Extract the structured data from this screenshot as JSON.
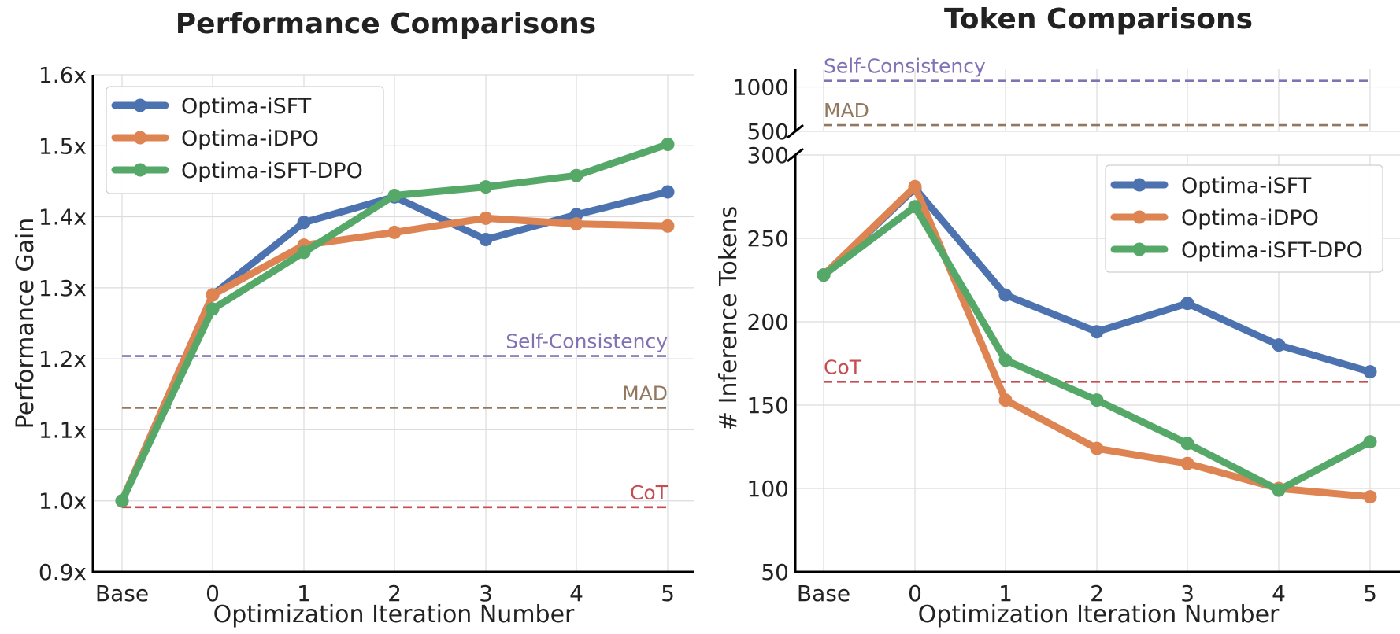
{
  "chart_data": [
    {
      "type": "line",
      "title": "Performance Comparisons",
      "xlabel": "Optimization Iteration Number",
      "ylabel": "Performance Gain",
      "categories": [
        "Base",
        "0",
        "1",
        "2",
        "3",
        "4",
        "5"
      ],
      "ylim": [
        0.9,
        1.6
      ],
      "yticks": [
        0.9,
        1.0,
        1.1,
        1.2,
        1.3,
        1.4,
        1.5,
        1.6
      ],
      "ytick_labels": [
        "0.9x",
        "1.0x",
        "1.1x",
        "1.2x",
        "1.3x",
        "1.4x",
        "1.5x",
        "1.6x"
      ],
      "grid": true,
      "legend_position": "top-left",
      "series": [
        {
          "name": "Optima-iSFT",
          "color": "#4c72b0",
          "values": [
            1.0,
            1.29,
            1.392,
            1.428,
            1.368,
            1.403,
            1.435
          ]
        },
        {
          "name": "Optima-iDPO",
          "color": "#dd8452",
          "values": [
            1.0,
            1.29,
            1.36,
            1.378,
            1.398,
            1.39,
            1.387
          ]
        },
        {
          "name": "Optima-iSFT-DPO",
          "color": "#55a868",
          "values": [
            1.0,
            1.27,
            1.35,
            1.43,
            1.442,
            1.458,
            1.502
          ]
        }
      ],
      "baselines": [
        {
          "name": "Self-Consistency",
          "color": "#8172b3",
          "value": 1.204
        },
        {
          "name": "MAD",
          "color": "#937860",
          "value": 1.131
        },
        {
          "name": "CoT",
          "color": "#c44e52",
          "value": 0.991
        }
      ]
    },
    {
      "type": "line",
      "title": "Token Comparisons",
      "xlabel": "Optimization Iteration Number",
      "ylabel": "# Inference Tokens",
      "categories": [
        "Base",
        "0",
        "1",
        "2",
        "3",
        "4",
        "5"
      ],
      "ylim_lower": [
        50,
        300
      ],
      "yticks_lower": [
        50,
        100,
        150,
        200,
        250,
        300
      ],
      "ytick_labels_lower": [
        "50",
        "100",
        "150",
        "200",
        "250",
        "300"
      ],
      "ylim_upper": [
        500,
        1200
      ],
      "yticks_upper": [
        500,
        1000
      ],
      "ytick_labels_upper": [
        "500",
        "1000"
      ],
      "broken_axis": true,
      "grid": true,
      "legend_position": "top-right",
      "series": [
        {
          "name": "Optima-iSFT",
          "color": "#4c72b0",
          "values": [
            228,
            280,
            216,
            194,
            211,
            186,
            170
          ]
        },
        {
          "name": "Optima-iDPO",
          "color": "#dd8452",
          "values": [
            228,
            281,
            153,
            124,
            115,
            100,
            95
          ]
        },
        {
          "name": "Optima-iSFT-DPO",
          "color": "#55a868",
          "values": [
            228,
            269,
            177,
            153,
            127,
            99,
            128
          ]
        }
      ],
      "baselines": [
        {
          "name": "Self-Consistency",
          "color": "#8172b3",
          "value": 1070
        },
        {
          "name": "MAD",
          "color": "#937860",
          "value": 570
        },
        {
          "name": "CoT",
          "color": "#c44e52",
          "value": 164
        }
      ]
    }
  ]
}
